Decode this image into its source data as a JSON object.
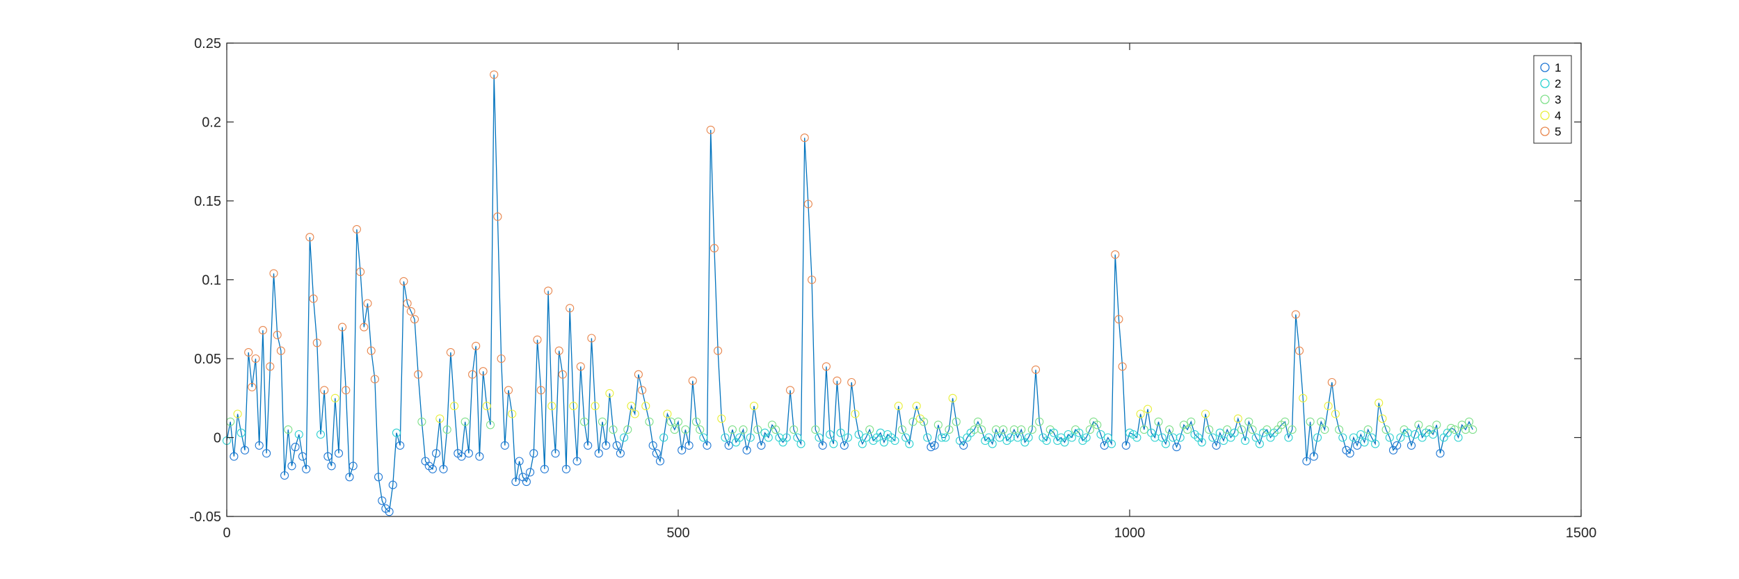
{
  "chart_data": {
    "type": "scatter",
    "title": "",
    "xlabel": "",
    "ylabel": "",
    "xlim": [
      0,
      1500
    ],
    "ylim": [
      -0.05,
      0.25
    ],
    "x_ticks": [
      0,
      500,
      1000,
      1500
    ],
    "x_tick_labels": [
      "0",
      "500",
      "1000",
      "1500"
    ],
    "y_ticks": [
      -0.05,
      0,
      0.05,
      0.1,
      0.15,
      0.2,
      0.25
    ],
    "y_tick_labels": [
      "-0.05",
      "0",
      "0.05",
      "0.1",
      "0.15",
      "0.2",
      "0.25"
    ],
    "grid": false,
    "legend_position": "top-right",
    "colors": {
      "line": "#0072BD",
      "series": [
        "#1f77d4",
        "#2bd1d1",
        "#7fe08a",
        "#e8ef3a",
        "#e8864d"
      ]
    },
    "sample_step": 4,
    "trace": [
      -0.002,
      0.01,
      -0.012,
      0.015,
      0.003,
      -0.008,
      0.054,
      0.032,
      0.05,
      -0.005,
      0.068,
      -0.01,
      0.045,
      0.104,
      0.065,
      0.055,
      -0.024,
      0.005,
      -0.018,
      -0.006,
      0.002,
      -0.012,
      -0.02,
      0.127,
      0.088,
      0.06,
      0.002,
      0.03,
      -0.012,
      -0.018,
      0.025,
      -0.01,
      0.07,
      0.03,
      -0.025,
      -0.018,
      0.132,
      0.105,
      0.07,
      0.085,
      0.055,
      0.037,
      -0.025,
      -0.04,
      -0.045,
      -0.047,
      -0.03,
      0.003,
      -0.005,
      0.099,
      0.085,
      0.08,
      0.075,
      0.04,
      0.01,
      -0.015,
      -0.018,
      -0.02,
      -0.01,
      0.012,
      -0.02,
      0.005,
      0.054,
      0.02,
      -0.01,
      -0.012,
      0.01,
      -0.01,
      0.04,
      0.058,
      -0.012,
      0.042,
      0.02,
      0.008,
      0.23,
      0.14,
      0.05,
      -0.005,
      0.03,
      0.015,
      -0.028,
      -0.015,
      -0.025,
      -0.028,
      -0.022,
      -0.01,
      0.062,
      0.03,
      -0.02,
      0.093,
      0.02,
      -0.01,
      0.055,
      0.04,
      -0.02,
      0.082,
      0.02,
      -0.015,
      0.045,
      0.01,
      -0.005,
      0.063,
      0.02,
      -0.01,
      0.01,
      -0.005,
      0.028,
      0.005,
      -0.005,
      -0.01,
      0.0,
      0.005,
      0.02,
      0.015,
      0.04,
      0.03,
      0.02,
      0.01,
      -0.005,
      -0.01,
      -0.015,
      0.0,
      0.015,
      0.01,
      0.005,
      0.01,
      -0.008,
      0.005,
      -0.005,
      0.036,
      0.01,
      0.005,
      0.0,
      -0.005,
      0.195,
      0.12,
      0.055,
      0.012,
      0.0,
      -0.005,
      0.005,
      -0.003,
      0.0,
      0.005,
      -0.008,
      0.0,
      0.02,
      0.005,
      -0.005,
      0.003,
      0.0,
      0.008,
      0.005,
      0.0,
      -0.003,
      0.0,
      0.03,
      0.005,
      0.0,
      -0.004,
      0.19,
      0.148,
      0.1,
      0.005,
      0.0,
      -0.005,
      0.045,
      0.002,
      -0.004,
      0.036,
      0.003,
      -0.005,
      0.0,
      0.035,
      0.015,
      0.002,
      -0.004,
      0.0,
      0.005,
      -0.002,
      0.0,
      0.003,
      -0.003,
      0.002,
      0.0,
      -0.002,
      0.02,
      0.005,
      0.0,
      -0.004,
      0.01,
      0.02,
      0.012,
      0.01,
      0.0,
      -0.006,
      -0.005,
      0.008,
      0.0,
      0.0,
      0.005,
      0.025,
      0.01,
      -0.002,
      -0.005,
      0.0,
      0.003,
      0.005,
      0.01,
      0.005,
      -0.002,
      0.0,
      -0.004,
      0.005,
      0.0,
      0.005,
      -0.002,
      0.0,
      0.005,
      0.0,
      0.005,
      -0.003,
      0.0,
      0.005,
      0.043,
      0.01,
      0.0,
      -0.002,
      0.005,
      0.003,
      -0.002,
      0.0,
      -0.003,
      0.002,
      0.0,
      0.005,
      0.003,
      -0.002,
      0.0,
      0.005,
      0.01,
      0.008,
      0.002,
      -0.005,
      0.0,
      -0.004,
      0.116,
      0.075,
      0.045,
      -0.005,
      0.003,
      0.002,
      0.0,
      0.015,
      0.005,
      0.018,
      0.003,
      0.0,
      0.01,
      0.0,
      -0.004,
      0.005,
      0.0,
      -0.006,
      0.0,
      0.008,
      0.005,
      0.01,
      0.002,
      0.0,
      -0.003,
      0.015,
      0.005,
      0.0,
      -0.005,
      0.003,
      -0.002,
      0.005,
      0.0,
      0.003,
      0.012,
      0.005,
      -0.002,
      0.01,
      0.005,
      0.0,
      -0.004,
      0.003,
      0.005,
      0.0,
      0.003,
      0.005,
      0.008,
      0.01,
      0.0,
      0.005,
      0.078,
      0.055,
      0.025,
      -0.015,
      0.01,
      -0.012,
      0.0,
      0.01,
      0.005,
      0.02,
      0.035,
      0.015,
      0.005,
      0.0,
      -0.008,
      -0.01,
      0.0,
      -0.005,
      0.002,
      -0.003,
      0.005,
      0.0,
      -0.004,
      0.022,
      0.012,
      0.005,
      0.0,
      -0.008,
      -0.005,
      0.0,
      0.005,
      0.003,
      -0.005,
      0.002,
      0.008,
      0.0,
      0.003,
      0.005,
      0.002,
      0.008,
      -0.01,
      0.0,
      0.003,
      0.006,
      0.005,
      0.0,
      0.008,
      0.005,
      0.01,
      0.005
    ]
  },
  "legend": {
    "items": [
      "1",
      "2",
      "3",
      "4",
      "5"
    ]
  }
}
